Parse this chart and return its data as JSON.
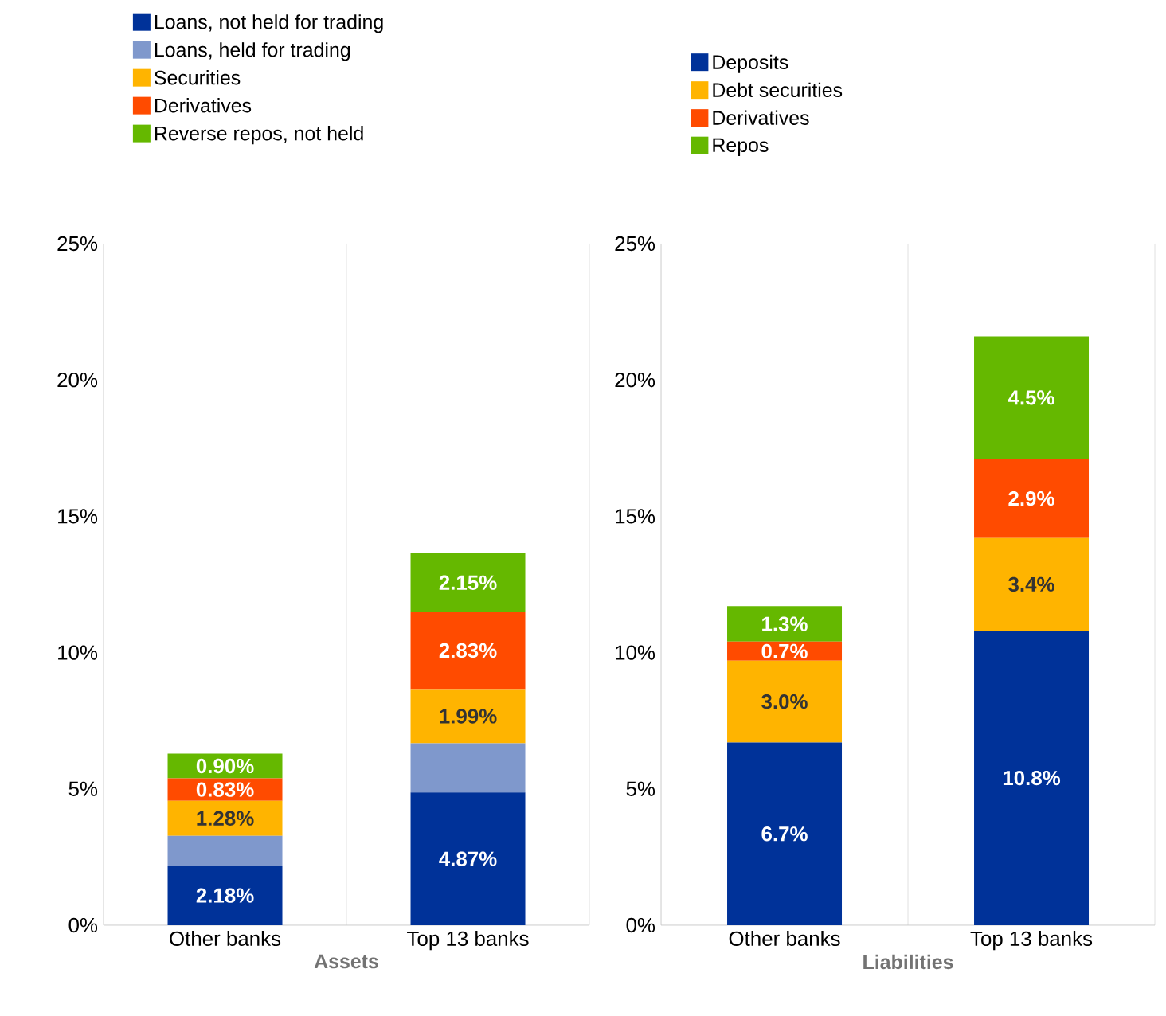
{
  "chart_data": [
    {
      "type": "bar",
      "stacked": true,
      "xlabel": "Assets",
      "categories": [
        "Other banks",
        "Top 13 banks"
      ],
      "ylim": [
        0,
        25
      ],
      "yticks": [
        {
          "value": 0,
          "label": "0%"
        },
        {
          "value": 5,
          "label": "5%"
        },
        {
          "value": 10,
          "label": "10%"
        },
        {
          "value": 15,
          "label": "15%"
        },
        {
          "value": 20,
          "label": "20%"
        },
        {
          "value": 25,
          "label": "25%"
        }
      ],
      "grid": "x",
      "legend": "top",
      "series": [
        {
          "name": "Loans, not held for trading",
          "color": "#003299",
          "values": [
            2.18,
            4.87
          ],
          "value_labels": [
            "2.18%",
            "4.87%"
          ]
        },
        {
          "name": "Loans, held for trading",
          "color": "#7f98cc",
          "values": [
            1.1,
            1.8
          ],
          "value_labels": [
            null,
            null
          ]
        },
        {
          "name": "Securities",
          "color": "#ffb400",
          "values": [
            1.28,
            1.99
          ],
          "value_labels": [
            "1.28%",
            "1.99%"
          ]
        },
        {
          "name": "Derivatives",
          "color": "#ff4b00",
          "values": [
            0.83,
            2.83
          ],
          "value_labels": [
            "0.83%",
            "2.83%"
          ]
        },
        {
          "name": "Reverse repos, not held",
          "color": "#65b800",
          "values": [
            0.9,
            2.15
          ],
          "value_labels": [
            "0.90%",
            "2.15%"
          ]
        }
      ]
    },
    {
      "type": "bar",
      "stacked": true,
      "xlabel": "Liabilities",
      "categories": [
        "Other banks",
        "Top 13 banks"
      ],
      "ylim": [
        0,
        25
      ],
      "yticks": [
        {
          "value": 0,
          "label": "0%"
        },
        {
          "value": 5,
          "label": "5%"
        },
        {
          "value": 10,
          "label": "10%"
        },
        {
          "value": 15,
          "label": "15%"
        },
        {
          "value": 20,
          "label": "20%"
        },
        {
          "value": 25,
          "label": "25%"
        }
      ],
      "grid": "x",
      "legend": "top",
      "series": [
        {
          "name": "Deposits",
          "color": "#003299",
          "values": [
            6.7,
            10.8
          ],
          "value_labels": [
            "6.7%",
            "10.8%"
          ]
        },
        {
          "name": "Debt securities",
          "color": "#ffb400",
          "values": [
            3.0,
            3.4
          ],
          "value_labels": [
            "3.0%",
            "3.4%"
          ]
        },
        {
          "name": "Derivatives",
          "color": "#ff4b00",
          "values": [
            0.7,
            2.9
          ],
          "value_labels": [
            "0.7%",
            "2.9%"
          ]
        },
        {
          "name": "Repos",
          "color": "#65b800",
          "values": [
            1.3,
            4.5
          ],
          "value_labels": [
            "1.3%",
            "4.5%"
          ]
        }
      ]
    }
  ]
}
